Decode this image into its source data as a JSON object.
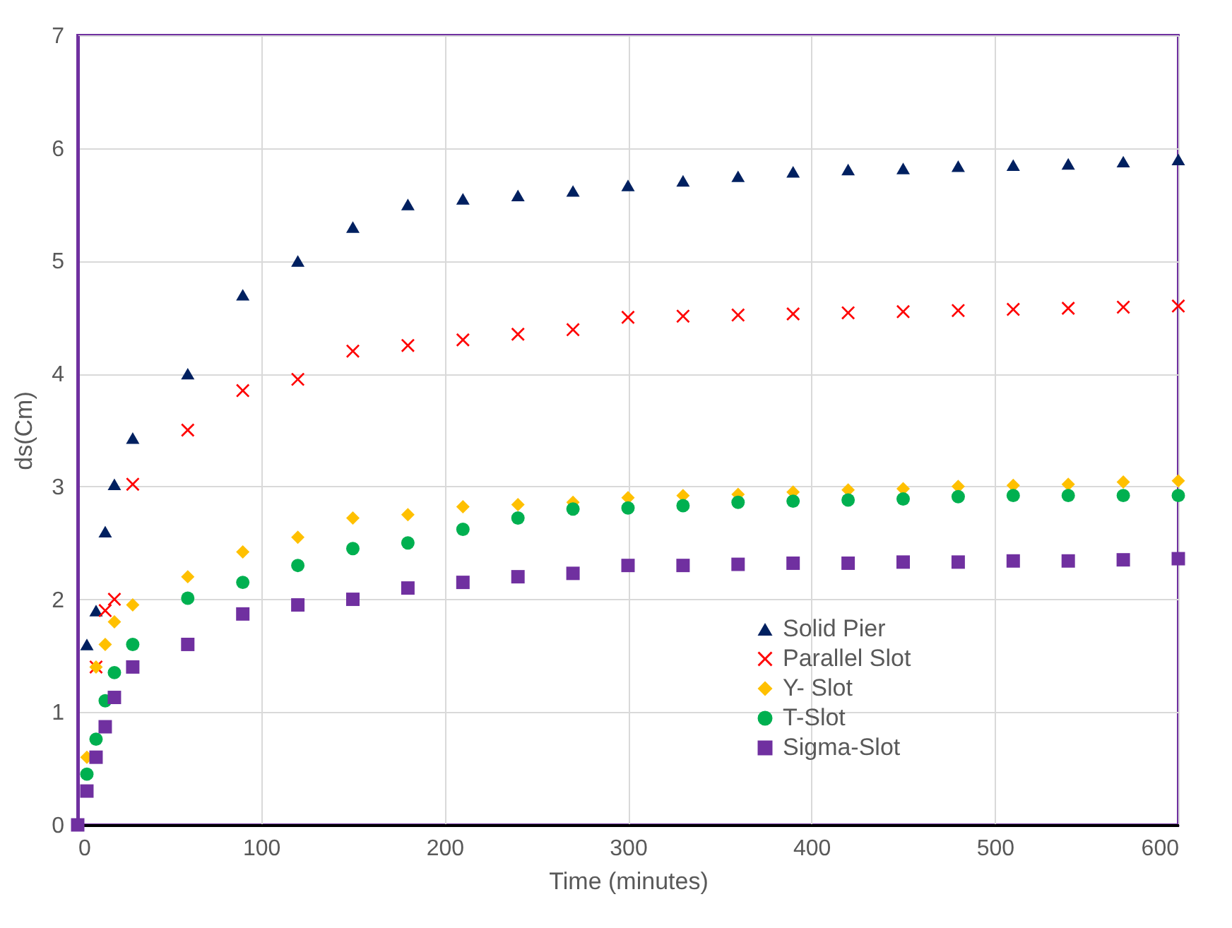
{
  "chart_data": {
    "type": "scatter",
    "xlabel": "Time (minutes)",
    "ylabel": "ds(Cm)",
    "x": [
      0,
      5,
      10,
      15,
      20,
      30,
      60,
      90,
      120,
      150,
      180,
      210,
      240,
      270,
      300,
      330,
      360,
      390,
      420,
      450,
      480,
      510,
      540,
      570,
      600
    ],
    "xlim": [
      0,
      600
    ],
    "xticks": [
      0,
      100,
      200,
      300,
      400,
      500,
      600
    ],
    "ylim": [
      0,
      7
    ],
    "yticks": [
      0,
      1,
      2,
      3,
      4,
      5,
      6,
      7
    ],
    "grid": true,
    "legend": "bottom right",
    "series": [
      {
        "name": "Solid Pier",
        "color": "#002060",
        "marker": "triangle",
        "values": [
          null,
          1.6,
          1.9,
          2.6,
          3.02,
          3.43,
          4.0,
          4.7,
          5.0,
          5.3,
          5.5,
          5.55,
          5.58,
          5.62,
          5.67,
          5.71,
          5.75,
          5.79,
          5.81,
          5.82,
          5.84,
          5.85,
          5.86,
          5.88,
          5.9
        ]
      },
      {
        "name": "Parallel Slot",
        "color": "#ff0000",
        "marker": "cross",
        "values": [
          null,
          null,
          1.4,
          1.9,
          2.0,
          3.02,
          3.5,
          3.85,
          3.95,
          4.2,
          4.25,
          4.3,
          4.35,
          4.39,
          4.5,
          4.51,
          4.52,
          4.53,
          4.54,
          4.55,
          4.56,
          4.57,
          4.58,
          4.59,
          4.6
        ]
      },
      {
        "name": "Y- Slot",
        "color": "#ffc000",
        "marker": "diamond",
        "values": [
          null,
          0.6,
          1.4,
          1.6,
          1.8,
          1.95,
          2.2,
          2.42,
          2.55,
          2.72,
          2.75,
          2.82,
          2.84,
          2.86,
          2.9,
          2.92,
          2.93,
          2.95,
          2.97,
          2.98,
          3.0,
          3.01,
          3.02,
          3.04,
          3.05
        ]
      },
      {
        "name": "T-Slot",
        "color": "#00b050",
        "marker": "circle",
        "values": [
          null,
          0.45,
          0.76,
          1.1,
          1.35,
          1.6,
          2.01,
          2.15,
          2.3,
          2.45,
          2.5,
          2.62,
          2.72,
          2.8,
          2.81,
          2.83,
          2.86,
          2.87,
          2.88,
          2.89,
          2.91,
          2.92,
          2.92,
          2.92,
          2.92
        ]
      },
      {
        "name": "Sigma-Slot",
        "color": "#7030a0",
        "marker": "square",
        "values": [
          0,
          0.3,
          0.6,
          0.87,
          1.13,
          1.4,
          1.6,
          1.87,
          1.95,
          2.0,
          2.1,
          2.15,
          2.2,
          2.23,
          2.3,
          2.3,
          2.31,
          2.32,
          2.32,
          2.33,
          2.33,
          2.34,
          2.34,
          2.35,
          2.36
        ]
      }
    ]
  }
}
